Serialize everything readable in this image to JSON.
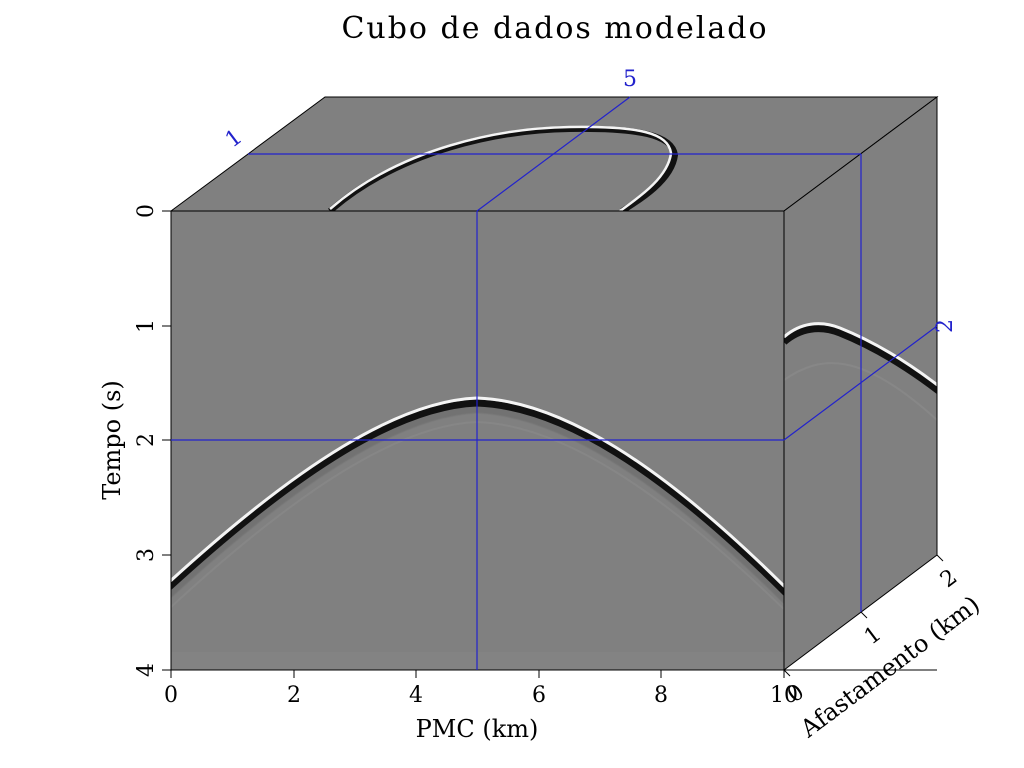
{
  "title": "Cubo de dados modelado",
  "axes": {
    "time": {
      "label": "Tempo (s)",
      "ticks": [
        "0",
        "1",
        "2",
        "3",
        "4"
      ],
      "range": [
        0,
        4
      ]
    },
    "cmp": {
      "label": "PMC (km)",
      "ticks": [
        "0",
        "2",
        "4",
        "6",
        "8",
        "10"
      ],
      "range": [
        0,
        10
      ]
    },
    "offset": {
      "label": "Afastamento (km)",
      "ticks": [
        "0",
        "1",
        "2"
      ],
      "range": [
        0,
        2
      ]
    }
  },
  "slice_markers": {
    "cmp": "5",
    "offset": "1",
    "time": "2"
  },
  "colors": {
    "background": "#ffffff",
    "data_gray": "#808080",
    "slice_lines": "#2222cc",
    "frame": "#000000"
  }
}
